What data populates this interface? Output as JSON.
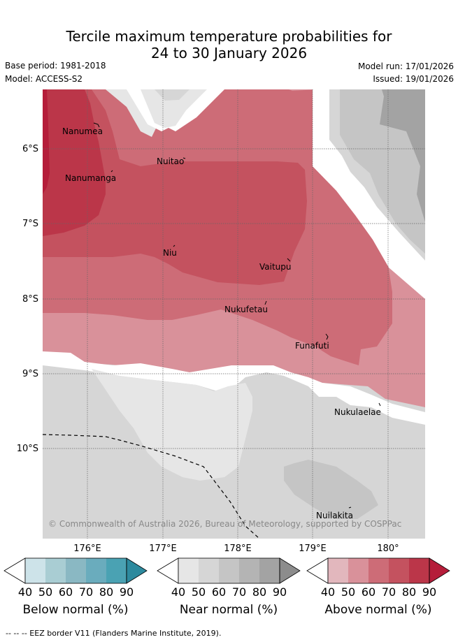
{
  "title": {
    "line1": "Tercile maximum temperature probabilities for",
    "line2": "24 to 30 January 2026"
  },
  "meta": {
    "base_period": "Base period: 1981-2018",
    "model": "Model: ACCESS-S2",
    "model_run": "Model run: 17/01/2026",
    "issued": "Issued: 19/01/2026"
  },
  "map": {
    "lat_labels": [
      "6°S",
      "7°S",
      "8°S",
      "9°S",
      "10°S"
    ],
    "lon_labels": [
      "176°E",
      "177°E",
      "178°E",
      "179°E",
      "180°"
    ],
    "places": [
      "Nanumea",
      "Nanumanga",
      "Nuitao",
      "Niu",
      "Vaitupu",
      "Nukufetau",
      "Funafuti",
      "Nukulaelae",
      "Nuilakita"
    ],
    "copyright": "© Commonwealth of Australia 2026, Bureau of Meteorology, supported by COSPPac"
  },
  "colorbars": {
    "ticks": [
      "40",
      "50",
      "60",
      "70",
      "80",
      "90"
    ],
    "below": {
      "title": "Below normal (%)",
      "colors": [
        "#cde3e9",
        "#a9cdd3",
        "#8ab8c3",
        "#6aacbd",
        "#4aa2b3",
        "#2d8a9e"
      ]
    },
    "near": {
      "title": "Near normal (%)",
      "colors": [
        "#e6e6e6",
        "#d6d6d6",
        "#c5c5c5",
        "#b4b4b4",
        "#a3a3a3",
        "#8c8c8c"
      ]
    },
    "above": {
      "title": "Above normal (%)",
      "colors": [
        "#e2b7bd",
        "#d9919a",
        "#cd6c77",
        "#c4525f",
        "#bb3649",
        "#b51d3a"
      ]
    }
  },
  "footer": "--  --  -- EEZ border V11 (Flanders Marine Institute, 2019)."
}
